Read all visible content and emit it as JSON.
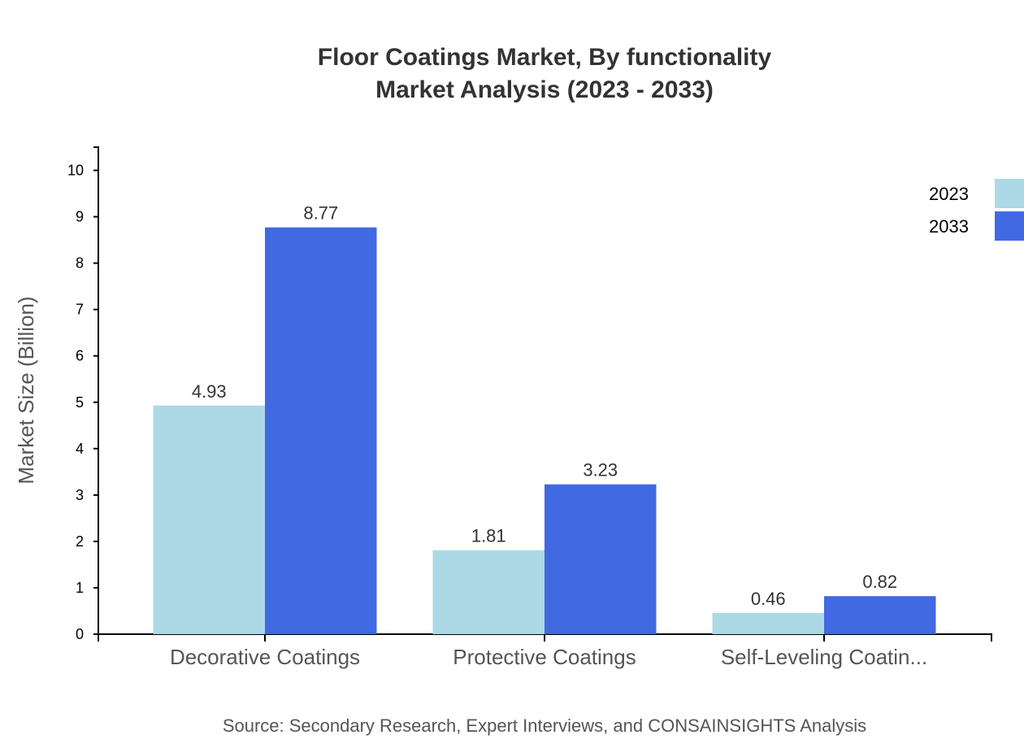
{
  "chart_data": {
    "type": "bar",
    "title": "Floor Coatings Market, By functionality",
    "subtitle": "Market Analysis (2023 - 2033)",
    "xlabel": "",
    "ylabel": "Market Size (Billion)",
    "ylim": [
      0,
      10.5
    ],
    "yticks": [
      0,
      1,
      2,
      3,
      4,
      5,
      6,
      7,
      8,
      9,
      10
    ],
    "categories": [
      "Decorative Coatings",
      "Protective Coatings",
      "Self-Leveling Coatin..."
    ],
    "series": [
      {
        "name": "2023",
        "color": "#ADD8E6",
        "values": [
          4.93,
          1.81,
          0.46
        ],
        "labels": [
          "4.93",
          "1.81",
          "0.46"
        ]
      },
      {
        "name": "2033",
        "color": "#4169E1",
        "values": [
          8.77,
          3.23,
          0.82
        ],
        "labels": [
          "8.77",
          "3.23",
          "0.82"
        ]
      }
    ],
    "grid": false,
    "legend_position": "top-right",
    "source": "Source: Secondary Research, Expert Interviews, and CONSAINSIGHTS Analysis"
  }
}
